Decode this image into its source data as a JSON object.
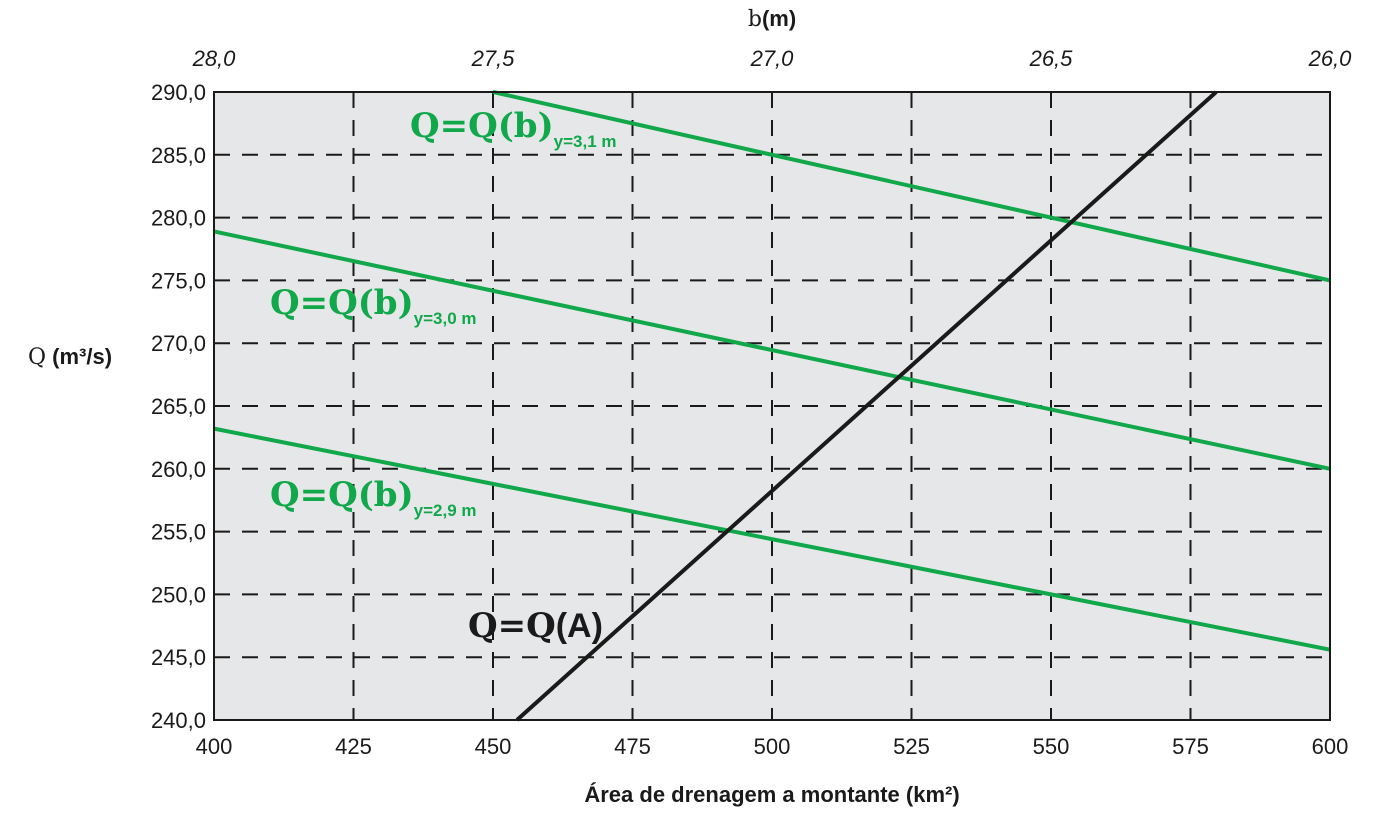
{
  "chart_data": {
    "type": "line",
    "x_axis": {
      "label": "Área de drenagem a montante (km²)",
      "min": 400,
      "max": 600,
      "ticks": [
        400,
        425,
        450,
        475,
        500,
        525,
        550,
        575,
        600
      ],
      "tick_labels": [
        "400",
        "425",
        "450",
        "475",
        "500",
        "525",
        "550",
        "575",
        "600"
      ]
    },
    "x2_axis": {
      "label_var": "b",
      "label_unit": "(m)",
      "min": 28.0,
      "max": 26.0,
      "ticks": [
        28.0,
        27.5,
        27.0,
        26.5,
        26.0
      ],
      "tick_labels": [
        "28,0",
        "27,5",
        "27,0",
        "26,5",
        "26,0"
      ]
    },
    "y_axis": {
      "label_var": "Q",
      "label_unit": " (m³/s)",
      "min": 240,
      "max": 290,
      "ticks": [
        240,
        245,
        250,
        255,
        260,
        265,
        270,
        275,
        280,
        285,
        290
      ],
      "tick_labels": [
        "240,0",
        "245,0",
        "250,0",
        "255,0",
        "260,0",
        "265,0",
        "270,0",
        "275,0",
        "280,0",
        "285,0",
        "290,0"
      ]
    },
    "grid": true,
    "colors": {
      "plot_bg": "#e6e7e8",
      "green": "#10a84a",
      "black": "#1a1a1a",
      "grid": "#1a1a1a"
    },
    "series": [
      {
        "name_main": "Q=Q(b)",
        "name_sub": "y=3,1 m",
        "axis": "x",
        "color": "#10a84a",
        "x": [
          450,
          600
        ],
        "y": [
          290.0,
          275.0
        ]
      },
      {
        "name_main": "Q=Q(b)",
        "name_sub": "y=3,0 m",
        "axis": "x",
        "color": "#10a84a",
        "x": [
          400,
          600
        ],
        "y": [
          278.9,
          260.0
        ]
      },
      {
        "name_main": "Q=Q(b)",
        "name_sub": "y=2,9 m",
        "axis": "x",
        "color": "#10a84a",
        "x": [
          400,
          600
        ],
        "y": [
          263.2,
          245.6
        ]
      },
      {
        "name_main": "Q=Q",
        "name_suffix": "(A)",
        "axis": "x",
        "color": "#1a1a1a",
        "x": [
          454.3,
          579.6
        ],
        "y": [
          240.0,
          290.0
        ]
      }
    ]
  }
}
